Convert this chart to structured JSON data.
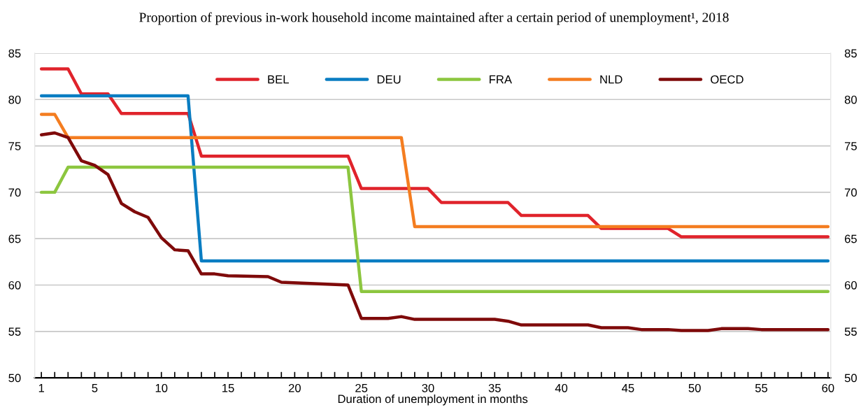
{
  "chart_data": {
    "type": "line",
    "title": "Proportion of previous in-work household income maintained after a certain period of unemployment¹, 2018",
    "xlabel": "Duration of unemployment in months",
    "xlim": [
      0.5,
      60.2
    ],
    "xticks": [
      1,
      {
        "value": 2,
        "label": null
      },
      {
        "value": 3,
        "label": null
      },
      {
        "value": 4,
        "label": null
      },
      5,
      {
        "value": 6,
        "label": null
      },
      {
        "value": 7,
        "label": null
      },
      {
        "value": 8,
        "label": null
      },
      {
        "value": 9,
        "label": null
      },
      10,
      {
        "value": 11,
        "label": null
      },
      {
        "value": 12,
        "label": null
      },
      {
        "value": 13,
        "label": null
      },
      {
        "value": 14,
        "label": null
      },
      15,
      {
        "value": 16,
        "label": null
      },
      {
        "value": 17,
        "label": null
      },
      {
        "value": 18,
        "label": null
      },
      {
        "value": 19,
        "label": null
      },
      20,
      {
        "value": 21,
        "label": null
      },
      {
        "value": 22,
        "label": null
      },
      {
        "value": 23,
        "label": null
      },
      {
        "value": 24,
        "label": null
      },
      25,
      {
        "value": 26,
        "label": null
      },
      {
        "value": 27,
        "label": null
      },
      {
        "value": 28,
        "label": null
      },
      {
        "value": 29,
        "label": null
      },
      30,
      {
        "value": 31,
        "label": null
      },
      {
        "value": 32,
        "label": null
      },
      {
        "value": 33,
        "label": null
      },
      {
        "value": 34,
        "label": null
      },
      35,
      {
        "value": 36,
        "label": null
      },
      {
        "value": 37,
        "label": null
      },
      {
        "value": 38,
        "label": null
      },
      {
        "value": 39,
        "label": null
      },
      40,
      {
        "value": 41,
        "label": null
      },
      {
        "value": 42,
        "label": null
      },
      {
        "value": 43,
        "label": null
      },
      {
        "value": 44,
        "label": null
      },
      45,
      {
        "value": 46,
        "label": null
      },
      {
        "value": 47,
        "label": null
      },
      {
        "value": 48,
        "label": null
      },
      {
        "value": 49,
        "label": null
      },
      50,
      {
        "value": 51,
        "label": null
      },
      {
        "value": 52,
        "label": null
      },
      {
        "value": 53,
        "label": null
      },
      {
        "value": 54,
        "label": null
      },
      55,
      {
        "value": 56,
        "label": null
      },
      {
        "value": 57,
        "label": null
      },
      {
        "value": 58,
        "label": null
      },
      {
        "value": 59,
        "label": null
      },
      60
    ],
    "ylim": [
      50,
      85
    ],
    "yticks": [
      50,
      55,
      60,
      65,
      70,
      75,
      80,
      85
    ],
    "y2lim": [
      50,
      85
    ],
    "y2ticks": [
      50,
      55,
      60,
      65,
      70,
      75,
      80,
      85
    ],
    "grid": "y",
    "legend": "top",
    "marker": "none",
    "line_style": "solid",
    "series": [
      {
        "name": "BEL",
        "color": "#e0232b",
        "x": [
          1,
          3,
          4,
          6,
          7,
          12,
          13,
          24,
          25,
          30,
          31,
          36,
          37,
          42,
          43,
          48,
          49,
          60
        ],
        "values": [
          83.3,
          83.3,
          80.6,
          80.6,
          78.5,
          78.5,
          73.9,
          73.9,
          70.4,
          70.4,
          68.9,
          68.9,
          67.5,
          67.5,
          66.1,
          66.1,
          65.2,
          65.2
        ]
      },
      {
        "name": "DEU",
        "color": "#0a7dc2",
        "x": [
          1,
          12,
          13,
          60
        ],
        "values": [
          80.4,
          80.4,
          62.6,
          62.6
        ]
      },
      {
        "name": "FRA",
        "color": "#8cc63f",
        "x": [
          1,
          2,
          3,
          24,
          25,
          60
        ],
        "values": [
          70.0,
          70.0,
          72.7,
          72.7,
          59.3,
          59.3
        ]
      },
      {
        "name": "NLD",
        "color": "#f47d20",
        "x": [
          1,
          2,
          3,
          28,
          29,
          60
        ],
        "values": [
          78.4,
          78.4,
          75.9,
          75.9,
          66.3,
          66.3
        ]
      },
      {
        "name": "OECD",
        "color": "#7f0a0a",
        "x": [
          1,
          2,
          3,
          4,
          5,
          6,
          7,
          8,
          9,
          10,
          11,
          12,
          13,
          14,
          15,
          18,
          19,
          24,
          25,
          27,
          28,
          29,
          35,
          36,
          37,
          42,
          43,
          45,
          46,
          48,
          49,
          51,
          52,
          54,
          55,
          60
        ],
        "values": [
          76.2,
          76.4,
          75.9,
          73.4,
          72.9,
          71.9,
          68.8,
          67.9,
          67.3,
          65.1,
          63.8,
          63.7,
          61.2,
          61.2,
          61.0,
          60.9,
          60.3,
          60.0,
          56.4,
          56.4,
          56.6,
          56.3,
          56.3,
          56.1,
          55.7,
          55.7,
          55.4,
          55.4,
          55.2,
          55.2,
          55.1,
          55.1,
          55.3,
          55.3,
          55.2,
          55.2
        ]
      }
    ]
  }
}
